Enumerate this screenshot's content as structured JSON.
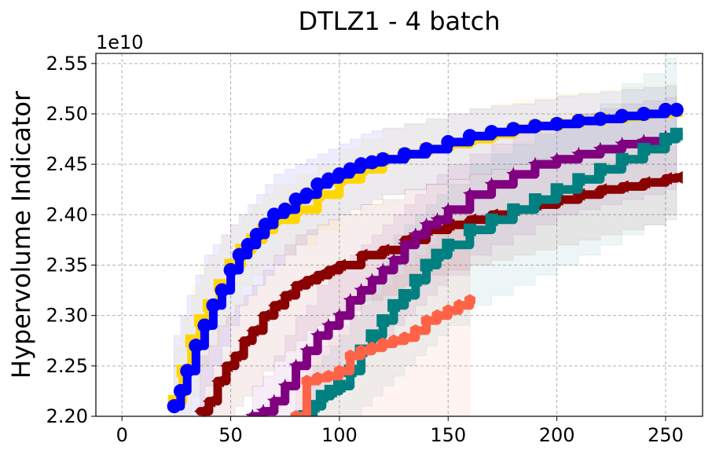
{
  "chart_data": {
    "type": "line",
    "title": "DTLZ1 - 4 batch",
    "xlabel": "",
    "ylabel": "Hypervolume Indicator",
    "y_offset_label": "1e10",
    "xlim": [
      -12,
      267
    ],
    "ylim": [
      2.2,
      2.56
    ],
    "x_ticks": [
      0,
      50,
      100,
      150,
      200,
      250
    ],
    "y_ticks": [
      2.2,
      2.25,
      2.3,
      2.35,
      2.4,
      2.45,
      2.5,
      2.55
    ],
    "x_tick_labels": [
      "0",
      "50",
      "100",
      "150",
      "200",
      "250"
    ],
    "y_tick_labels": [
      "2.20",
      "2.25",
      "2.30",
      "2.35",
      "2.40",
      "2.45",
      "2.50",
      "2.55"
    ],
    "grid": true,
    "series": [
      {
        "name": "gold",
        "color": "#FFD700",
        "marker": "square",
        "x": [
          24,
          28,
          32,
          36,
          40,
          45,
          50,
          55,
          60,
          65,
          70,
          80,
          90,
          100,
          110,
          120,
          130,
          140,
          150,
          160,
          170,
          180,
          190,
          200,
          210,
          220,
          230,
          240,
          250,
          255
        ],
        "y": [
          2.215,
          2.245,
          2.275,
          2.295,
          2.31,
          2.33,
          2.35,
          2.365,
          2.375,
          2.385,
          2.395,
          2.405,
          2.42,
          2.435,
          2.445,
          2.455,
          2.46,
          2.465,
          2.47,
          2.475,
          2.48,
          2.485,
          2.488,
          2.49,
          2.493,
          2.495,
          2.497,
          2.5,
          2.502,
          2.503
        ],
        "band_lower": [
          2.2,
          2.2,
          2.22,
          2.25,
          2.27,
          2.29,
          2.31,
          2.33,
          2.34,
          2.35,
          2.36,
          2.37,
          2.385,
          2.4,
          2.41,
          2.42,
          2.425,
          2.43,
          2.435,
          2.44,
          2.445,
          2.45,
          2.455,
          2.458,
          2.462,
          2.465,
          2.468,
          2.47,
          2.472,
          2.473
        ],
        "band_upper": [
          2.27,
          2.3,
          2.33,
          2.35,
          2.36,
          2.38,
          2.39,
          2.4,
          2.41,
          2.42,
          2.43,
          2.44,
          2.45,
          2.465,
          2.475,
          2.485,
          2.49,
          2.495,
          2.5,
          2.505,
          2.51,
          2.513,
          2.516,
          2.52,
          2.522,
          2.524,
          2.526,
          2.528,
          2.53,
          2.53
        ]
      },
      {
        "name": "blue",
        "color": "#0000FF",
        "marker": "circle",
        "x": [
          24,
          27,
          30,
          34,
          38,
          42,
          46,
          50,
          54,
          58,
          62,
          66,
          70,
          75,
          80,
          85,
          90,
          95,
          100,
          105,
          110,
          115,
          120,
          130,
          140,
          150,
          160,
          170,
          180,
          190,
          200,
          210,
          220,
          230,
          240,
          250,
          255
        ],
        "y": [
          2.21,
          2.225,
          2.245,
          2.27,
          2.29,
          2.31,
          2.325,
          2.345,
          2.36,
          2.37,
          2.38,
          2.39,
          2.4,
          2.405,
          2.415,
          2.42,
          2.43,
          2.435,
          2.44,
          2.445,
          2.45,
          2.452,
          2.455,
          2.46,
          2.465,
          2.472,
          2.478,
          2.482,
          2.485,
          2.488,
          2.49,
          2.493,
          2.495,
          2.498,
          2.5,
          2.504,
          2.504
        ],
        "band_lower": [
          2.2,
          2.2,
          2.2,
          2.21,
          2.23,
          2.25,
          2.27,
          2.29,
          2.31,
          2.32,
          2.33,
          2.34,
          2.35,
          2.36,
          2.37,
          2.38,
          2.39,
          2.395,
          2.4,
          2.405,
          2.41,
          2.415,
          2.42,
          2.425,
          2.43,
          2.435,
          2.44,
          2.445,
          2.45,
          2.455,
          2.458,
          2.462,
          2.465,
          2.468,
          2.47,
          2.472,
          2.473
        ],
        "band_upper": [
          2.28,
          2.3,
          2.32,
          2.34,
          2.36,
          2.37,
          2.38,
          2.39,
          2.4,
          2.41,
          2.42,
          2.43,
          2.44,
          2.445,
          2.45,
          2.455,
          2.46,
          2.465,
          2.47,
          2.475,
          2.48,
          2.483,
          2.486,
          2.49,
          2.495,
          2.5,
          2.505,
          2.508,
          2.51,
          2.514,
          2.518,
          2.52,
          2.522,
          2.524,
          2.526,
          2.528,
          2.528
        ]
      },
      {
        "name": "darkred",
        "color": "#8B0000",
        "marker": "triangle-left",
        "x": [
          36,
          40,
          44,
          48,
          52,
          56,
          60,
          65,
          70,
          75,
          80,
          85,
          90,
          95,
          100,
          110,
          120,
          130,
          140,
          150,
          160,
          170,
          180,
          190,
          200,
          210,
          220,
          230,
          240,
          250,
          255
        ],
        "y": [
          2.205,
          2.215,
          2.235,
          2.25,
          2.26,
          2.275,
          2.285,
          2.3,
          2.31,
          2.32,
          2.33,
          2.335,
          2.34,
          2.345,
          2.35,
          2.36,
          2.365,
          2.375,
          2.385,
          2.39,
          2.395,
          2.4,
          2.405,
          2.41,
          2.415,
          2.42,
          2.425,
          2.428,
          2.432,
          2.436,
          2.437
        ],
        "band_lower": [
          2.2,
          2.2,
          2.2,
          2.2,
          2.21,
          2.22,
          2.23,
          2.245,
          2.255,
          2.265,
          2.275,
          2.285,
          2.29,
          2.3,
          2.305,
          2.315,
          2.32,
          2.33,
          2.34,
          2.345,
          2.35,
          2.355,
          2.36,
          2.365,
          2.37,
          2.375,
          2.38,
          2.385,
          2.39,
          2.395,
          2.4
        ],
        "band_upper": [
          2.26,
          2.27,
          2.29,
          2.3,
          2.31,
          2.32,
          2.33,
          2.345,
          2.36,
          2.37,
          2.38,
          2.385,
          2.39,
          2.395,
          2.4,
          2.41,
          2.415,
          2.425,
          2.43,
          2.435,
          2.44,
          2.445,
          2.45,
          2.455,
          2.458,
          2.46,
          2.462,
          2.465,
          2.467,
          2.469,
          2.47
        ]
      },
      {
        "name": "purple",
        "color": "#800080",
        "marker": "star",
        "x": [
          60,
          65,
          70,
          75,
          80,
          85,
          90,
          95,
          100,
          105,
          110,
          115,
          120,
          125,
          130,
          135,
          140,
          145,
          150,
          160,
          170,
          180,
          190,
          200,
          210,
          220,
          230,
          240,
          250,
          255
        ],
        "y": [
          2.2,
          2.205,
          2.215,
          2.23,
          2.25,
          2.265,
          2.28,
          2.29,
          2.3,
          2.315,
          2.325,
          2.335,
          2.345,
          2.355,
          2.37,
          2.38,
          2.39,
          2.395,
          2.405,
          2.42,
          2.43,
          2.44,
          2.45,
          2.455,
          2.46,
          2.465,
          2.47,
          2.473,
          2.477,
          2.478
        ],
        "band_lower": [
          2.2,
          2.2,
          2.2,
          2.2,
          2.2,
          2.21,
          2.22,
          2.23,
          2.24,
          2.25,
          2.26,
          2.27,
          2.28,
          2.29,
          2.3,
          2.31,
          2.32,
          2.33,
          2.34,
          2.36,
          2.37,
          2.38,
          2.39,
          2.4,
          2.405,
          2.41,
          2.415,
          2.42,
          2.425,
          2.427
        ],
        "band_upper": [
          2.23,
          2.24,
          2.26,
          2.28,
          2.3,
          2.31,
          2.33,
          2.34,
          2.35,
          2.36,
          2.37,
          2.38,
          2.39,
          2.4,
          2.41,
          2.42,
          2.43,
          2.44,
          2.45,
          2.46,
          2.47,
          2.48,
          2.49,
          2.495,
          2.5,
          2.505,
          2.51,
          2.513,
          2.516,
          2.518
        ]
      },
      {
        "name": "teal",
        "color": "#008080",
        "marker": "square",
        "x": [
          84,
          88,
          92,
          96,
          100,
          105,
          110,
          115,
          120,
          125,
          130,
          135,
          140,
          145,
          150,
          160,
          170,
          180,
          190,
          200,
          210,
          220,
          230,
          240,
          250,
          255
        ],
        "y": [
          2.2,
          2.21,
          2.22,
          2.225,
          2.23,
          2.245,
          2.265,
          2.28,
          2.295,
          2.31,
          2.32,
          2.335,
          2.35,
          2.36,
          2.37,
          2.385,
          2.395,
          2.405,
          2.415,
          2.425,
          2.435,
          2.445,
          2.455,
          2.465,
          2.475,
          2.48
        ],
        "band_lower": [
          2.2,
          2.2,
          2.2,
          2.2,
          2.2,
          2.2,
          2.21,
          2.22,
          2.23,
          2.24,
          2.25,
          2.26,
          2.27,
          2.28,
          2.29,
          2.31,
          2.32,
          2.33,
          2.34,
          2.35,
          2.36,
          2.37,
          2.38,
          2.39,
          2.4,
          2.405
        ],
        "band_upper": [
          2.24,
          2.25,
          2.26,
          2.27,
          2.28,
          2.3,
          2.32,
          2.34,
          2.36,
          2.38,
          2.39,
          2.4,
          2.41,
          2.42,
          2.43,
          2.45,
          2.46,
          2.47,
          2.48,
          2.49,
          2.5,
          2.51,
          2.53,
          2.54,
          2.555,
          2.56
        ]
      },
      {
        "name": "tomato",
        "color": "#FF6347",
        "marker": "hexagon",
        "x": [
          80,
          85,
          90,
          95,
          100,
          105,
          110,
          115,
          120,
          125,
          130,
          135,
          140,
          145,
          150,
          155,
          160
        ],
        "y": [
          2.2,
          2.235,
          2.238,
          2.24,
          2.245,
          2.26,
          2.265,
          2.268,
          2.272,
          2.275,
          2.278,
          2.285,
          2.295,
          2.3,
          2.305,
          2.31,
          2.315
        ],
        "band_lower": [
          2.2,
          2.2,
          2.2,
          2.2,
          2.2,
          2.2,
          2.2,
          2.2,
          2.2,
          2.2,
          2.2,
          2.2,
          2.2,
          2.2,
          2.2,
          2.2,
          2.2
        ],
        "band_upper": [
          2.23,
          2.26,
          2.27,
          2.28,
          2.29,
          2.3,
          2.31,
          2.32,
          2.33,
          2.34,
          2.35,
          2.36,
          2.37,
          2.38,
          2.39,
          2.4,
          2.41
        ]
      }
    ]
  }
}
